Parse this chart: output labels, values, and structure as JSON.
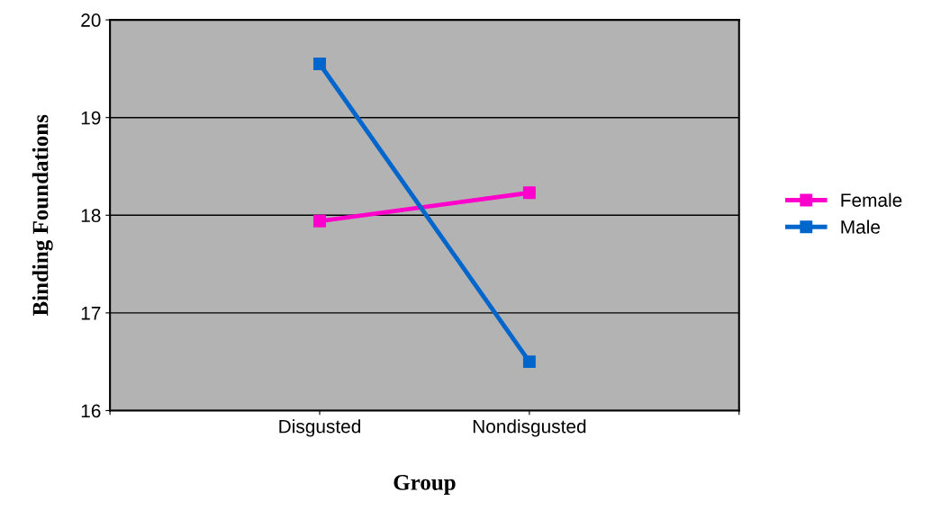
{
  "chart_data": {
    "type": "line",
    "xlabel": "Group",
    "ylabel": "Binding Foundations",
    "categories": [
      null,
      "Disgusted",
      "Nondisgusted",
      null
    ],
    "series": [
      {
        "name": "Female",
        "color": "#ff00cc",
        "values": [
          null,
          17.94,
          18.23,
          null
        ]
      },
      {
        "name": "Male",
        "color": "#0066cc",
        "values": [
          null,
          19.55,
          16.5,
          null
        ]
      }
    ],
    "ylim": [
      16,
      20
    ],
    "yticks": [
      16,
      17,
      18,
      19,
      20
    ],
    "grid": "y",
    "legend": "right",
    "marker": "square",
    "line_style": "solid"
  }
}
